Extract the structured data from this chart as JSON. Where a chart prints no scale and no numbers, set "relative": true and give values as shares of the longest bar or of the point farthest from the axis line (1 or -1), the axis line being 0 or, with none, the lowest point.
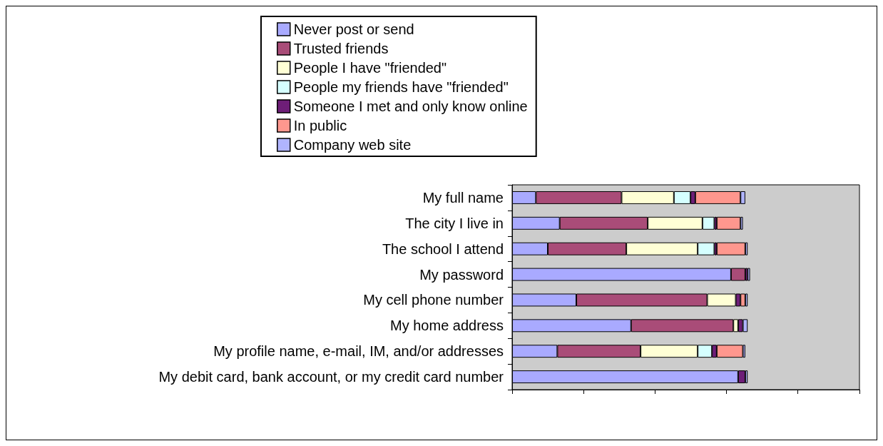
{
  "chart_data": {
    "type": "bar",
    "orientation": "horizontal",
    "stacked": true,
    "relative": true,
    "legend": "top",
    "tick_labels": "y",
    "categories": [
      "My full name",
      "The city I live in",
      "The school I attend",
      "My password",
      "My cell phone number",
      "My home address",
      "My profile name, e-mail, IM, and/or addresses",
      "My debit card, bank account, or my credit card number"
    ],
    "series": [
      {
        "name": "Never post or send",
        "color": "#a9aaff",
        "values": [
          0.1,
          0.2,
          0.15,
          0.92,
          0.27,
          0.5,
          0.19,
          0.95
        ]
      },
      {
        "name": "Trusted friends",
        "color": "#a94c78",
        "values": [
          0.36,
          0.37,
          0.33,
          0.06,
          0.55,
          0.43,
          0.35,
          0
        ]
      },
      {
        "name": "People I have \"friended\"",
        "color": "#ffffd5",
        "values": [
          0.22,
          0.23,
          0.3,
          0,
          0.12,
          0.02,
          0.24,
          0
        ]
      },
      {
        "name": "People my friends have \"friended\"",
        "color": "#d5ffff",
        "values": [
          0.07,
          0.05,
          0.07,
          0,
          0,
          0,
          0.06,
          0
        ]
      },
      {
        "name": "Someone I met and only know online",
        "color": "#6e1e78",
        "values": [
          0.02,
          0.01,
          0.01,
          0.01,
          0.02,
          0.02,
          0.02,
          0.03
        ]
      },
      {
        "name": "In public",
        "color": "#ff978e",
        "values": [
          0.19,
          0.1,
          0.12,
          0,
          0.02,
          0,
          0.11,
          0
        ]
      },
      {
        "name": "Company web site",
        "color": "#b0b4ff",
        "values": [
          0.02,
          0.01,
          0.01,
          0.01,
          0.01,
          0.02,
          0.01,
          0.01
        ]
      }
    ]
  }
}
